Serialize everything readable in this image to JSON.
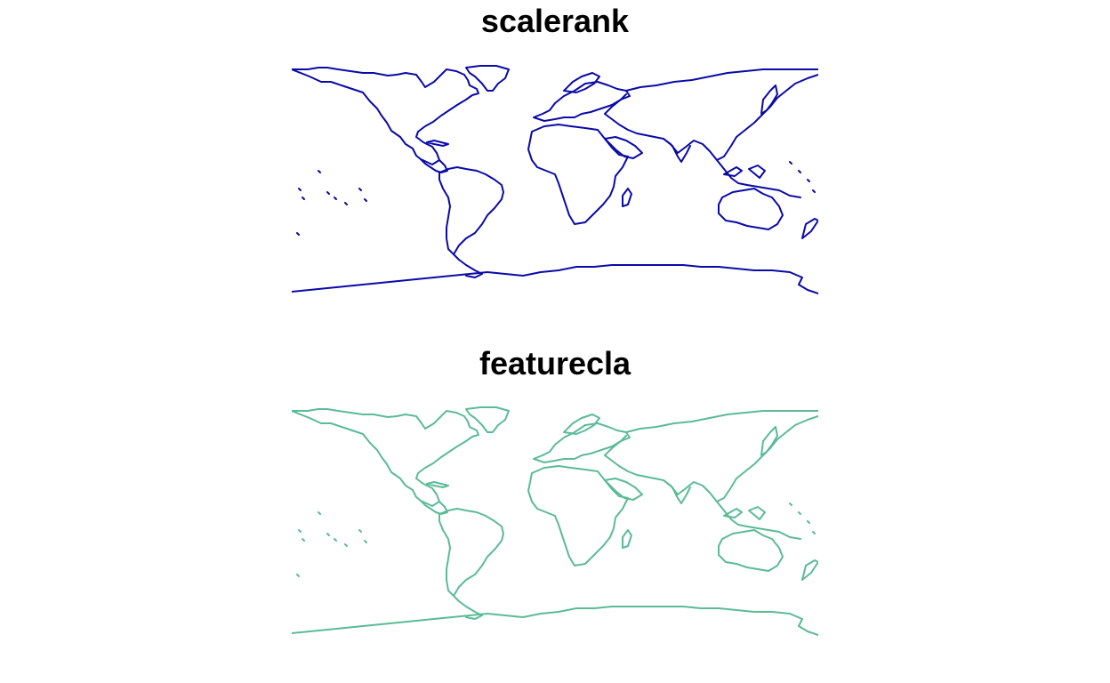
{
  "panels": [
    {
      "title": "scalerank",
      "stroke_color": "#0a0aa8"
    },
    {
      "title": "featurecla",
      "stroke_color": "#5bbb96"
    }
  ]
}
